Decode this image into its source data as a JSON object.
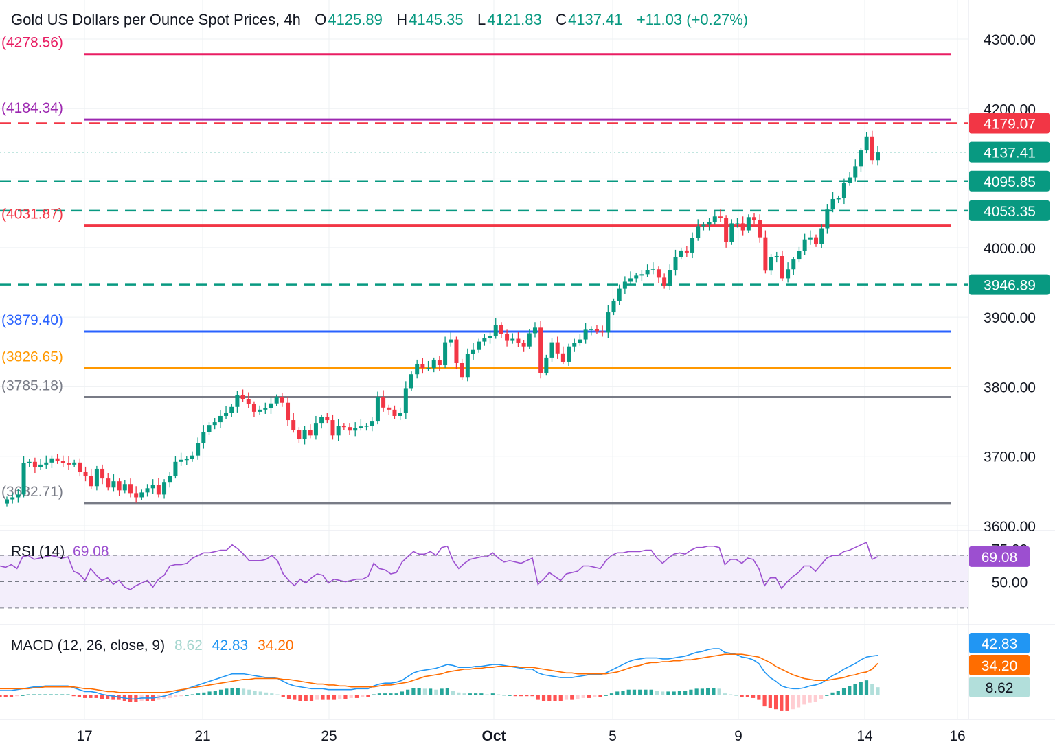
{
  "header": {
    "symbol": "Gold US Dollars per Ounce Spot Prices, 4h",
    "open_label": "O",
    "open": "4125.89",
    "high_label": "H",
    "high": "4145.35",
    "low_label": "L",
    "low": "4121.83",
    "close_label": "C",
    "close": "4137.41",
    "change": "+11.03 (+0.27%)"
  },
  "colors": {
    "up": "#089981",
    "down": "#f23645",
    "grid": "#eef0f3",
    "text": "#131722",
    "rsi": "#9c4fd0",
    "macd": "#2196f3",
    "signal": "#ff6d00"
  },
  "chart_data": [
    {
      "type": "candlestick",
      "title": "Gold US Dollars per Ounce Spot Prices, 4h",
      "x_ticks": [
        "17",
        "21",
        "25",
        "Oct",
        "5",
        "9",
        "14",
        "16"
      ],
      "y_ticks": [
        "3600.00",
        "3700.00",
        "3800.00",
        "3900.00",
        "4000.00",
        "4100.00",
        "4200.00",
        "4300.00"
      ],
      "ylim": [
        3600,
        4300
      ],
      "series": [
        {
          "name": "Gold",
          "values_close": [
            3638,
            3641,
            3645,
            3690,
            3692,
            3684,
            3688,
            3691,
            3697,
            3693,
            3690,
            3688,
            3691,
            3677,
            3672,
            3657,
            3682,
            3668,
            3655,
            3664,
            3651,
            3660,
            3647,
            3641,
            3648,
            3654,
            3659,
            3645,
            3663,
            3672,
            3692,
            3695,
            3696,
            3701,
            3719,
            3735,
            3745,
            3749,
            3758,
            3762,
            3771,
            3788,
            3782,
            3775,
            3764,
            3767,
            3769,
            3776,
            3785,
            3777,
            3752,
            3738,
            3725,
            3738,
            3730,
            3748,
            3756,
            3752,
            3730,
            3744,
            3742,
            3737,
            3741,
            3743,
            3744,
            3750,
            3785,
            3770,
            3767,
            3758,
            3762,
            3798,
            3818,
            3833,
            3827,
            3827,
            3838,
            3831,
            3864,
            3868,
            3834,
            3814,
            3847,
            3853,
            3865,
            3870,
            3873,
            3889,
            3876,
            3866,
            3869,
            3863,
            3858,
            3877,
            3885,
            3820,
            3842,
            3864,
            3848,
            3836,
            3858,
            3863,
            3868,
            3882,
            3883,
            3880,
            3878,
            3907,
            3923,
            3941,
            3951,
            3956,
            3960,
            3962,
            3968,
            3969,
            3957,
            3945,
            3968,
            3987,
            3996,
            3993,
            4014,
            4031,
            4033,
            4037,
            4045,
            4043,
            4008,
            4035,
            4035,
            4025,
            4044,
            4040,
            4015,
            3967,
            3987,
            3988,
            3956,
            3969,
            3983,
            3995,
            4012,
            4015,
            4005,
            4028,
            4055,
            4070,
            4071,
            4093,
            4101,
            4117,
            4140,
            4160,
            4126,
            4137
          ],
          "values_open": [
            3632,
            3638,
            3641,
            3645,
            3690,
            3692,
            3684,
            3688,
            3691,
            3697,
            3693,
            3690,
            3688,
            3691,
            3677,
            3672,
            3657,
            3682,
            3668,
            3655,
            3664,
            3651,
            3660,
            3647,
            3641,
            3648,
            3654,
            3659,
            3645,
            3663,
            3672,
            3692,
            3695,
            3696,
            3701,
            3719,
            3735,
            3745,
            3749,
            3758,
            3762,
            3771,
            3788,
            3782,
            3775,
            3764,
            3767,
            3769,
            3776,
            3785,
            3777,
            3752,
            3738,
            3725,
            3738,
            3730,
            3748,
            3756,
            3752,
            3730,
            3744,
            3742,
            3737,
            3741,
            3743,
            3744,
            3750,
            3785,
            3770,
            3767,
            3758,
            3762,
            3798,
            3818,
            3833,
            3827,
            3827,
            3838,
            3831,
            3864,
            3868,
            3834,
            3814,
            3847,
            3853,
            3865,
            3870,
            3873,
            3889,
            3876,
            3866,
            3869,
            3863,
            3858,
            3877,
            3885,
            3820,
            3842,
            3864,
            3848,
            3836,
            3858,
            3863,
            3868,
            3882,
            3883,
            3880,
            3878,
            3907,
            3923,
            3941,
            3951,
            3956,
            3960,
            3962,
            3968,
            3969,
            3957,
            3945,
            3968,
            3987,
            3996,
            3993,
            4014,
            4031,
            4033,
            4037,
            4045,
            4043,
            4008,
            4035,
            4035,
            4025,
            4044,
            4040,
            4015,
            3967,
            3987,
            3988,
            3956,
            3969,
            3983,
            3995,
            4012,
            4015,
            4005,
            4028,
            4055,
            4070,
            4071,
            4093,
            4101,
            4117,
            4140,
            4160,
            4126
          ]
        }
      ],
      "levels": [
        {
          "label": "(4278.56)",
          "value": 4278.56,
          "color": "#e91e63",
          "style": "solid"
        },
        {
          "label": "(4184.34)",
          "value": 4184.34,
          "color": "#9c27b0",
          "style": "solid"
        },
        {
          "label": "4179.07",
          "value": 4179.07,
          "color": "#f23645",
          "style": "dashed"
        },
        {
          "label": "4137.41",
          "value": 4137.41,
          "color": "#089981",
          "style": "dotted"
        },
        {
          "label": "4095.85",
          "value": 4095.85,
          "color": "#089981",
          "style": "dashed"
        },
        {
          "label": "4053.35",
          "value": 4053.35,
          "color": "#089981",
          "style": "dashed"
        },
        {
          "label": "(4031.87)",
          "value": 4031.87,
          "color": "#f23645",
          "style": "solid"
        },
        {
          "label": "3946.89",
          "value": 3946.89,
          "color": "#089981",
          "style": "dashed"
        },
        {
          "label": "(3879.40)",
          "value": 3879.4,
          "color": "#2962ff",
          "style": "solid"
        },
        {
          "label": "(3826.65)",
          "value": 3826.65,
          "color": "#ff9800",
          "style": "solid"
        },
        {
          "label": "(3785.18)",
          "value": 3785.18,
          "color": "#787b86",
          "style": "solid"
        },
        {
          "label": "(3632.71)",
          "value": 3632.71,
          "color": "#787b86",
          "style": "solid"
        }
      ]
    },
    {
      "type": "line",
      "title": "RSI (14)",
      "value_label": "69.08",
      "y_ticks": [
        "50.00",
        "75.00"
      ],
      "ylim": [
        20,
        80
      ],
      "band": [
        30,
        70
      ],
      "series": [
        {
          "name": "RSI",
          "values": [
            62,
            61,
            63,
            60,
            69,
            70,
            67,
            68,
            69,
            70,
            69,
            68,
            69,
            58,
            56,
            51,
            60,
            55,
            51,
            53,
            48,
            51,
            46,
            44,
            47,
            49,
            51,
            46,
            52,
            55,
            62,
            63,
            63,
            64,
            68,
            70,
            72,
            72,
            73,
            74,
            74,
            78,
            75,
            71,
            66,
            66,
            66,
            67,
            70,
            66,
            56,
            51,
            47,
            52,
            49,
            53,
            56,
            55,
            49,
            52,
            51,
            50,
            51,
            52,
            52,
            54,
            64,
            60,
            59,
            56,
            57,
            65,
            69,
            73,
            71,
            71,
            73,
            70,
            76,
            77,
            66,
            60,
            64,
            67,
            68,
            69,
            69,
            72,
            68,
            65,
            66,
            65,
            64,
            66,
            68,
            48,
            52,
            57,
            54,
            51,
            56,
            57,
            58,
            62,
            62,
            61,
            60,
            66,
            70,
            72,
            72,
            73,
            73,
            73,
            74,
            74,
            68,
            64,
            68,
            71,
            72,
            71,
            74,
            76,
            76,
            77,
            77,
            76,
            63,
            67,
            67,
            64,
            68,
            67,
            60,
            47,
            53,
            53,
            45,
            50,
            54,
            57,
            62,
            62,
            58,
            63,
            68,
            70,
            70,
            73,
            74,
            76,
            78,
            80,
            67,
            69.08
          ]
        }
      ]
    },
    {
      "type": "line",
      "title": "MACD (12, 26, close, 9)",
      "hist_label": "8.62",
      "macd_label": "42.83",
      "signal_label": "34.20",
      "ylim": [
        -20,
        50
      ],
      "series": [
        {
          "name": "Histogram",
          "values": [
            -2,
            -2,
            -2,
            -1,
            0,
            1,
            1,
            1,
            1,
            1,
            1,
            1,
            1,
            -1,
            -2,
            -3,
            -3,
            -3,
            -4,
            -4,
            -5,
            -5,
            -6,
            -7,
            -7,
            -6,
            -6,
            -6,
            -5,
            -4,
            -3,
            -2,
            -1,
            0,
            1,
            2,
            3,
            4,
            5,
            6,
            7,
            8,
            8,
            7,
            6,
            5,
            4,
            3,
            2,
            1,
            -2,
            -4,
            -5,
            -6,
            -6,
            -6,
            -5,
            -5,
            -5,
            -5,
            -4,
            -4,
            -3,
            -3,
            -2,
            -2,
            1,
            2,
            2,
            2,
            2,
            4,
            6,
            8,
            8,
            7,
            7,
            6,
            7,
            8,
            5,
            3,
            2,
            2,
            2,
            2,
            1,
            2,
            1,
            0,
            0,
            -1,
            -1,
            -1,
            -1,
            -5,
            -6,
            -6,
            -6,
            -6,
            -5,
            -5,
            -4,
            -3,
            -3,
            -2,
            -2,
            0,
            2,
            4,
            5,
            6,
            6,
            6,
            6,
            6,
            5,
            4,
            4,
            4,
            5,
            5,
            6,
            7,
            7,
            8,
            8,
            7,
            2,
            1,
            0,
            -2,
            -2,
            -3,
            -5,
            -12,
            -14,
            -15,
            -17,
            -17,
            -15,
            -13,
            -10,
            -8,
            -7,
            -4,
            0,
            3,
            5,
            8,
            10,
            12,
            14,
            16,
            12,
            8.62
          ]
        },
        {
          "name": "MACD",
          "values": [
            5,
            5,
            5,
            6,
            7,
            8,
            9,
            9,
            10,
            10,
            10,
            10,
            10,
            8,
            6,
            4,
            4,
            3,
            1,
            0,
            -1,
            -2,
            -3,
            -4,
            -4,
            -3,
            -3,
            -3,
            -2,
            -1,
            1,
            3,
            5,
            7,
            9,
            11,
            13,
            15,
            17,
            19,
            21,
            23,
            23,
            23,
            22,
            21,
            20,
            19,
            19,
            18,
            15,
            12,
            10,
            9,
            8,
            7,
            7,
            7,
            6,
            6,
            6,
            6,
            6,
            7,
            7,
            7,
            10,
            12,
            13,
            13,
            14,
            16,
            20,
            24,
            26,
            27,
            28,
            29,
            31,
            33,
            32,
            30,
            30,
            30,
            31,
            31,
            32,
            33,
            33,
            32,
            31,
            30,
            29,
            28,
            28,
            24,
            22,
            21,
            20,
            19,
            19,
            19,
            20,
            21,
            22,
            22,
            22,
            24,
            27,
            30,
            33,
            36,
            38,
            39,
            40,
            40,
            40,
            39,
            39,
            40,
            41,
            42,
            44,
            46,
            47,
            49,
            50,
            50,
            46,
            45,
            44,
            41,
            40,
            38,
            34,
            25,
            19,
            15,
            10,
            8,
            7,
            7,
            8,
            10,
            11,
            13,
            17,
            21,
            24,
            28,
            31,
            34,
            38,
            41,
            42,
            42.83
          ]
        },
        {
          "name": "Signal",
          "values": [
            7,
            7,
            7,
            7,
            7,
            7,
            8,
            8,
            9,
            9,
            9,
            9,
            9,
            9,
            8,
            7,
            7,
            6,
            5,
            4,
            4,
            3,
            3,
            3,
            3,
            3,
            3,
            3,
            3,
            3,
            4,
            5,
            6,
            7,
            8,
            9,
            10,
            11,
            12,
            13,
            14,
            15,
            16,
            17,
            17,
            18,
            18,
            18,
            18,
            18,
            17,
            17,
            16,
            15,
            14,
            13,
            12,
            12,
            11,
            11,
            10,
            10,
            9,
            9,
            9,
            9,
            9,
            10,
            11,
            11,
            12,
            13,
            14,
            16,
            18,
            20,
            21,
            22,
            23,
            25,
            26,
            27,
            28,
            28,
            29,
            29,
            30,
            30,
            31,
            31,
            31,
            31,
            30,
            30,
            30,
            29,
            28,
            27,
            26,
            25,
            24,
            24,
            23,
            23,
            23,
            23,
            23,
            23,
            24,
            25,
            27,
            29,
            31,
            32,
            34,
            35,
            35,
            36,
            36,
            37,
            37,
            38,
            38,
            39,
            40,
            41,
            42,
            43,
            44,
            44,
            44,
            44,
            43,
            42,
            41,
            38,
            35,
            31,
            28,
            25,
            22,
            20,
            18,
            17,
            16,
            16,
            16,
            17,
            18,
            19,
            21,
            22,
            24,
            25,
            28,
            34.2
          ]
        }
      ]
    }
  ]
}
